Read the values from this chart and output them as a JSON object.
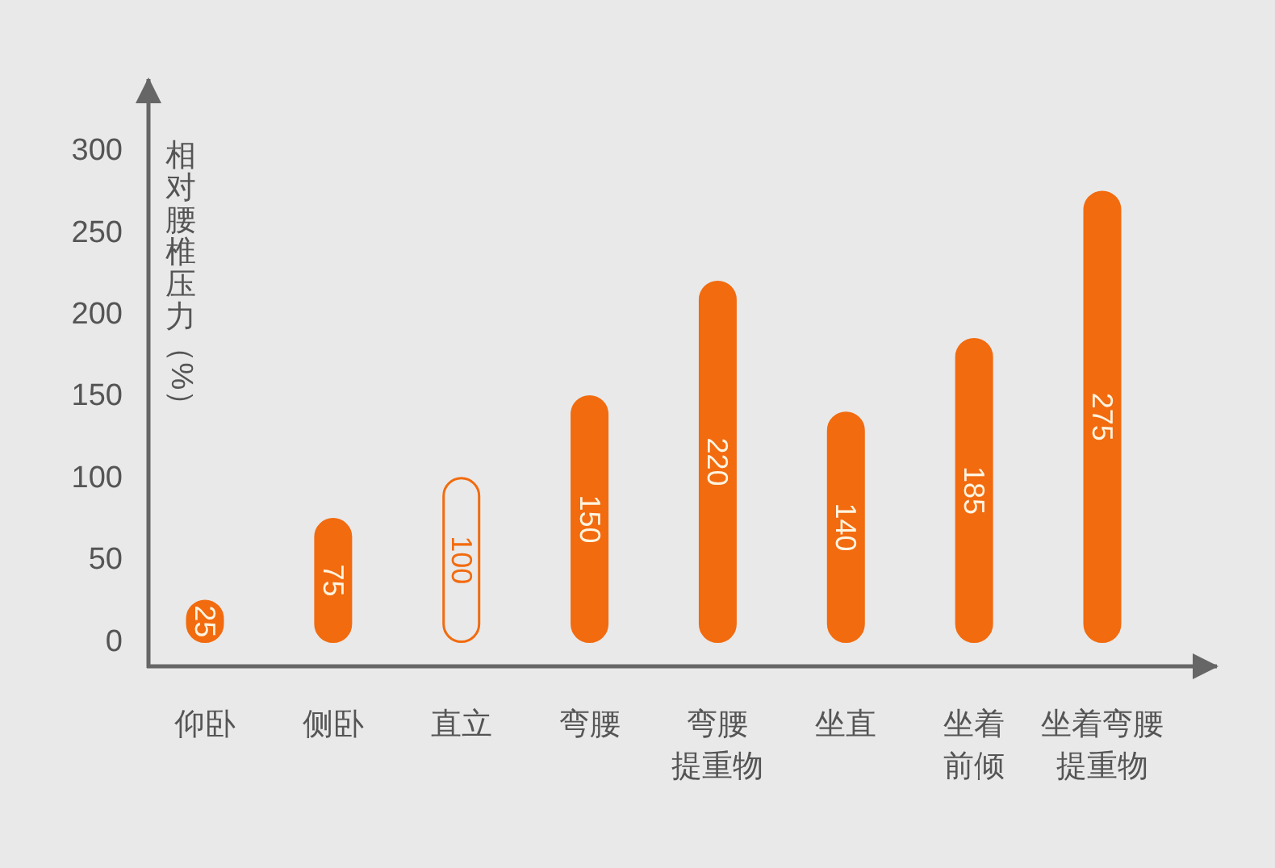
{
  "chart_data": {
    "type": "bar",
    "ylabel": "相对腰椎压力（%）",
    "categories": [
      "仰卧",
      "侧卧",
      "直立",
      "弯腰",
      "弯腰提重物",
      "坐直",
      "坐着前倾",
      "坐着弯腰提重物"
    ],
    "values": [
      25,
      75,
      100,
      150,
      220,
      140,
      185,
      275
    ],
    "color": "#f26b0f",
    "colors": [
      "#f26b0f",
      "#f26b0f",
      "#e9e9e9",
      "#f26b0f",
      "#f26b0f",
      "#f26b0f",
      "#f26b0f",
      "#f26b0f"
    ],
    "data_labels": true,
    "ylim": [
      -15,
      345
    ],
    "yticks": [
      0,
      50,
      100,
      150,
      200,
      250,
      300
    ]
  }
}
